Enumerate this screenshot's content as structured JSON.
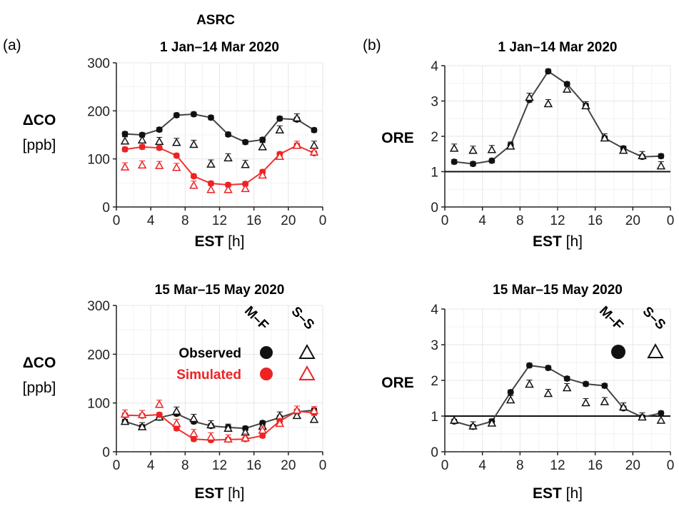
{
  "figure": {
    "site": "ASRC",
    "panel_a": "(a)",
    "panel_b": "(b)"
  },
  "legend": {
    "col_mf": "M–F",
    "col_ss": "S–S",
    "observed": "Observed",
    "simulated": "Simulated"
  },
  "colors": {
    "observed": "#111111",
    "simulated": "#ee2222",
    "observed_line": "#444444",
    "simulated_line": "#ee3333"
  },
  "chart_data": [
    {
      "id": "a-top",
      "type": "line",
      "title": "1 Jan–14 Mar 2020",
      "ylabel": "ΔCO",
      "yunit": "[ppb]",
      "xlabel": "EST",
      "xunit": "[h]",
      "xlim": [
        0,
        24
      ],
      "ylim": [
        0,
        300
      ],
      "xticks": [
        "0",
        "4",
        "8",
        "12",
        "16",
        "20",
        "0"
      ],
      "yticks": [
        "0",
        "100",
        "200",
        "300"
      ],
      "grid": true,
      "x": [
        1,
        3,
        5,
        7,
        9,
        11,
        13,
        15,
        17,
        19,
        21,
        23
      ],
      "series": [
        {
          "name": "Observed",
          "days": "M–F",
          "marker": "circle",
          "line": true,
          "values": [
            152,
            150,
            161,
            191,
            193,
            186,
            151,
            135,
            140,
            184,
            182,
            160
          ]
        },
        {
          "name": "Observed",
          "days": "S–S",
          "marker": "triangle",
          "line": false,
          "values": [
            137,
            139,
            136,
            134,
            130,
            89,
            102,
            88,
            125,
            160,
            185,
            128
          ]
        },
        {
          "name": "Simulated",
          "days": "M–F",
          "marker": "circle",
          "line": true,
          "values": [
            120,
            125,
            123,
            107,
            64,
            49,
            46,
            48,
            73,
            110,
            128,
            112
          ]
        },
        {
          "name": "Simulated",
          "days": "S–S",
          "marker": "triangle",
          "line": false,
          "values": [
            83,
            87,
            86,
            82,
            45,
            36,
            36,
            38,
            66,
            105,
            128,
            114
          ]
        }
      ]
    },
    {
      "id": "a-bottom",
      "type": "line",
      "title": "15 Mar–15 May 2020",
      "ylabel": "ΔCO",
      "yunit": "[ppb]",
      "xlabel": "EST",
      "xunit": "[h]",
      "xlim": [
        0,
        24
      ],
      "ylim": [
        0,
        300
      ],
      "xticks": [
        "0",
        "4",
        "8",
        "12",
        "16",
        "20",
        "0"
      ],
      "yticks": [
        "0",
        "100",
        "200",
        "300"
      ],
      "grid": true,
      "x": [
        1,
        3,
        5,
        7,
        9,
        11,
        13,
        15,
        17,
        19,
        21,
        23
      ],
      "series": [
        {
          "name": "Observed",
          "days": "M–F",
          "marker": "circle",
          "line": true,
          "values": [
            62,
            51,
            70,
            78,
            62,
            53,
            50,
            48,
            59,
            70,
            82,
            85
          ]
        },
        {
          "name": "Observed",
          "days": "S–S",
          "marker": "triangle",
          "line": false,
          "values": [
            62,
            51,
            71,
            83,
            68,
            55,
            48,
            40,
            52,
            73,
            74,
            66
          ]
        },
        {
          "name": "Simulated",
          "days": "M–F",
          "marker": "circle",
          "line": true,
          "values": [
            75,
            74,
            76,
            48,
            26,
            24,
            25,
            26,
            33,
            63,
            83,
            80
          ]
        },
        {
          "name": "Simulated",
          "days": "S–S",
          "marker": "triangle",
          "line": false,
          "values": [
            77,
            76,
            97,
            58,
            37,
            30,
            26,
            28,
            44,
            58,
            85,
            84
          ]
        }
      ]
    },
    {
      "id": "b-top",
      "type": "line",
      "title": "1 Jan–14 Mar 2020",
      "ylabel": "ORE",
      "xlabel": "EST",
      "xunit": "[h]",
      "xlim": [
        0,
        24
      ],
      "ylim": [
        0,
        4
      ],
      "xticks": [
        "0",
        "4",
        "8",
        "12",
        "16",
        "20",
        "0"
      ],
      "yticks": [
        "0",
        "1",
        "2",
        "3",
        "4"
      ],
      "grid": true,
      "reference_line": 1,
      "x": [
        1,
        3,
        5,
        7,
        9,
        11,
        13,
        15,
        17,
        19,
        21,
        23
      ],
      "series": [
        {
          "days": "M–F",
          "marker": "circle",
          "line": true,
          "values": [
            1.28,
            1.22,
            1.31,
            1.75,
            3.03,
            3.84,
            3.48,
            2.87,
            1.95,
            1.66,
            1.42,
            1.44
          ]
        },
        {
          "days": "S–S",
          "marker": "triangle",
          "line": false,
          "values": [
            1.66,
            1.6,
            1.62,
            1.72,
            3.1,
            2.92,
            3.33,
            2.86,
            1.95,
            1.6,
            1.45,
            1.16
          ]
        }
      ]
    },
    {
      "id": "b-bottom",
      "type": "line",
      "title": "15 Mar–15 May 2020",
      "ylabel": "ORE",
      "xlabel": "EST",
      "xunit": "[h]",
      "xlim": [
        0,
        24
      ],
      "ylim": [
        0,
        4
      ],
      "xticks": [
        "0",
        "4",
        "8",
        "12",
        "16",
        "20",
        "0"
      ],
      "yticks": [
        "0",
        "1",
        "2",
        "3",
        "4"
      ],
      "grid": true,
      "reference_line": 1,
      "x": [
        1,
        3,
        5,
        7,
        9,
        11,
        13,
        15,
        17,
        19,
        21,
        23
      ],
      "series": [
        {
          "days": "M–F",
          "marker": "circle",
          "line": true,
          "values": [
            0.85,
            0.7,
            0.85,
            1.67,
            2.42,
            2.35,
            2.05,
            1.9,
            1.85,
            1.22,
            0.97,
            1.08
          ]
        },
        {
          "days": "S–S",
          "marker": "triangle",
          "line": false,
          "values": [
            0.88,
            0.72,
            0.8,
            1.45,
            1.89,
            1.63,
            1.79,
            1.37,
            1.4,
            1.25,
            0.97,
            0.88
          ]
        }
      ]
    }
  ]
}
